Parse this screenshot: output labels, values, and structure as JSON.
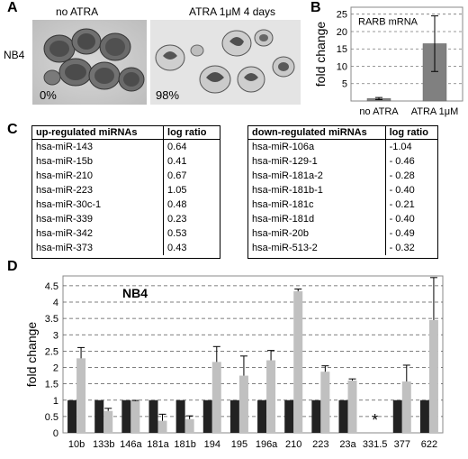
{
  "panel_labels": {
    "a": "A",
    "b": "B",
    "c": "C",
    "d": "D"
  },
  "panel_a": {
    "cell_line": "NB4",
    "left_caption": "no ATRA",
    "right_caption": "ATRA 1μM 4 days",
    "left_pct": "0%",
    "right_pct": "98%"
  },
  "panel_c": {
    "up": {
      "header": [
        "up-regulated miRNAs",
        "log ratio"
      ],
      "rows": [
        [
          "hsa-miR-143",
          "0.64"
        ],
        [
          "hsa-miR-15b",
          "0.41"
        ],
        [
          "hsa-miR-210",
          "0.67"
        ],
        [
          "hsa-miR-223",
          "1.05"
        ],
        [
          "hsa-miR-30c-1",
          "0.48"
        ],
        [
          "hsa-miR-339",
          "0.23"
        ],
        [
          "hsa-miR-342",
          "0.53"
        ],
        [
          "hsa-miR-373",
          "0.43"
        ]
      ]
    },
    "down": {
      "header": [
        "down-regulated miRNAs",
        "log ratio"
      ],
      "rows": [
        [
          "hsa-miR-106a",
          "-1.04"
        ],
        [
          "hsa-miR-129-1",
          "- 0.46"
        ],
        [
          "hsa-miR-181a-2",
          "- 0.28"
        ],
        [
          "hsa-miR-181b-1",
          "- 0.40"
        ],
        [
          "hsa-miR-181c",
          "- 0.21"
        ],
        [
          "hsa-miR-181d",
          "- 0.40"
        ],
        [
          "hsa-miR-20b",
          "- 0.49"
        ],
        [
          "hsa-miR-513-2",
          "- 0.32"
        ]
      ]
    }
  },
  "chart_data": [
    {
      "type": "bar",
      "title": "RARB mRNA",
      "ylabel": "fold change",
      "xlabel": "",
      "categories": [
        "no ATRA",
        "ATRA 1μM"
      ],
      "values": [
        0.7,
        16.5
      ],
      "error": [
        0.3,
        8
      ],
      "yticks": [
        5,
        10,
        15,
        20,
        25
      ],
      "ylim": [
        0,
        27
      ],
      "grid": true,
      "bar_color": "#808080"
    },
    {
      "type": "bar",
      "title": "NB4",
      "ylabel": "fold change",
      "xlabel": "",
      "categories": [
        "10b",
        "133b",
        "146a",
        "181a",
        "181b",
        "194",
        "195",
        "196a",
        "210",
        "223",
        "23a",
        "331.5",
        "377",
        "622"
      ],
      "series": [
        {
          "values": [
            1,
            1,
            1,
            1,
            1,
            1,
            1,
            1,
            1,
            1,
            1,
            null,
            1,
            1
          ],
          "color": "#222222"
        },
        {
          "values": [
            2.28,
            0.67,
            0.97,
            0.37,
            0.42,
            2.17,
            1.75,
            2.22,
            4.33,
            1.87,
            1.6,
            null,
            1.57,
            3.45
          ],
          "error": [
            0.33,
            0.08,
            0.02,
            0.2,
            0.1,
            0.47,
            0.6,
            0.3,
            0.07,
            0.18,
            0.05,
            null,
            0.5,
            1.3
          ],
          "color": "#c0c0c0"
        }
      ],
      "annotations": [
        {
          "category": "331.5",
          "text": "*"
        }
      ],
      "yticks": [
        0,
        0.5,
        1,
        1.5,
        2,
        2.5,
        3,
        3.5,
        4,
        4.5
      ],
      "ylim": [
        0,
        4.8
      ],
      "grid": true
    }
  ]
}
